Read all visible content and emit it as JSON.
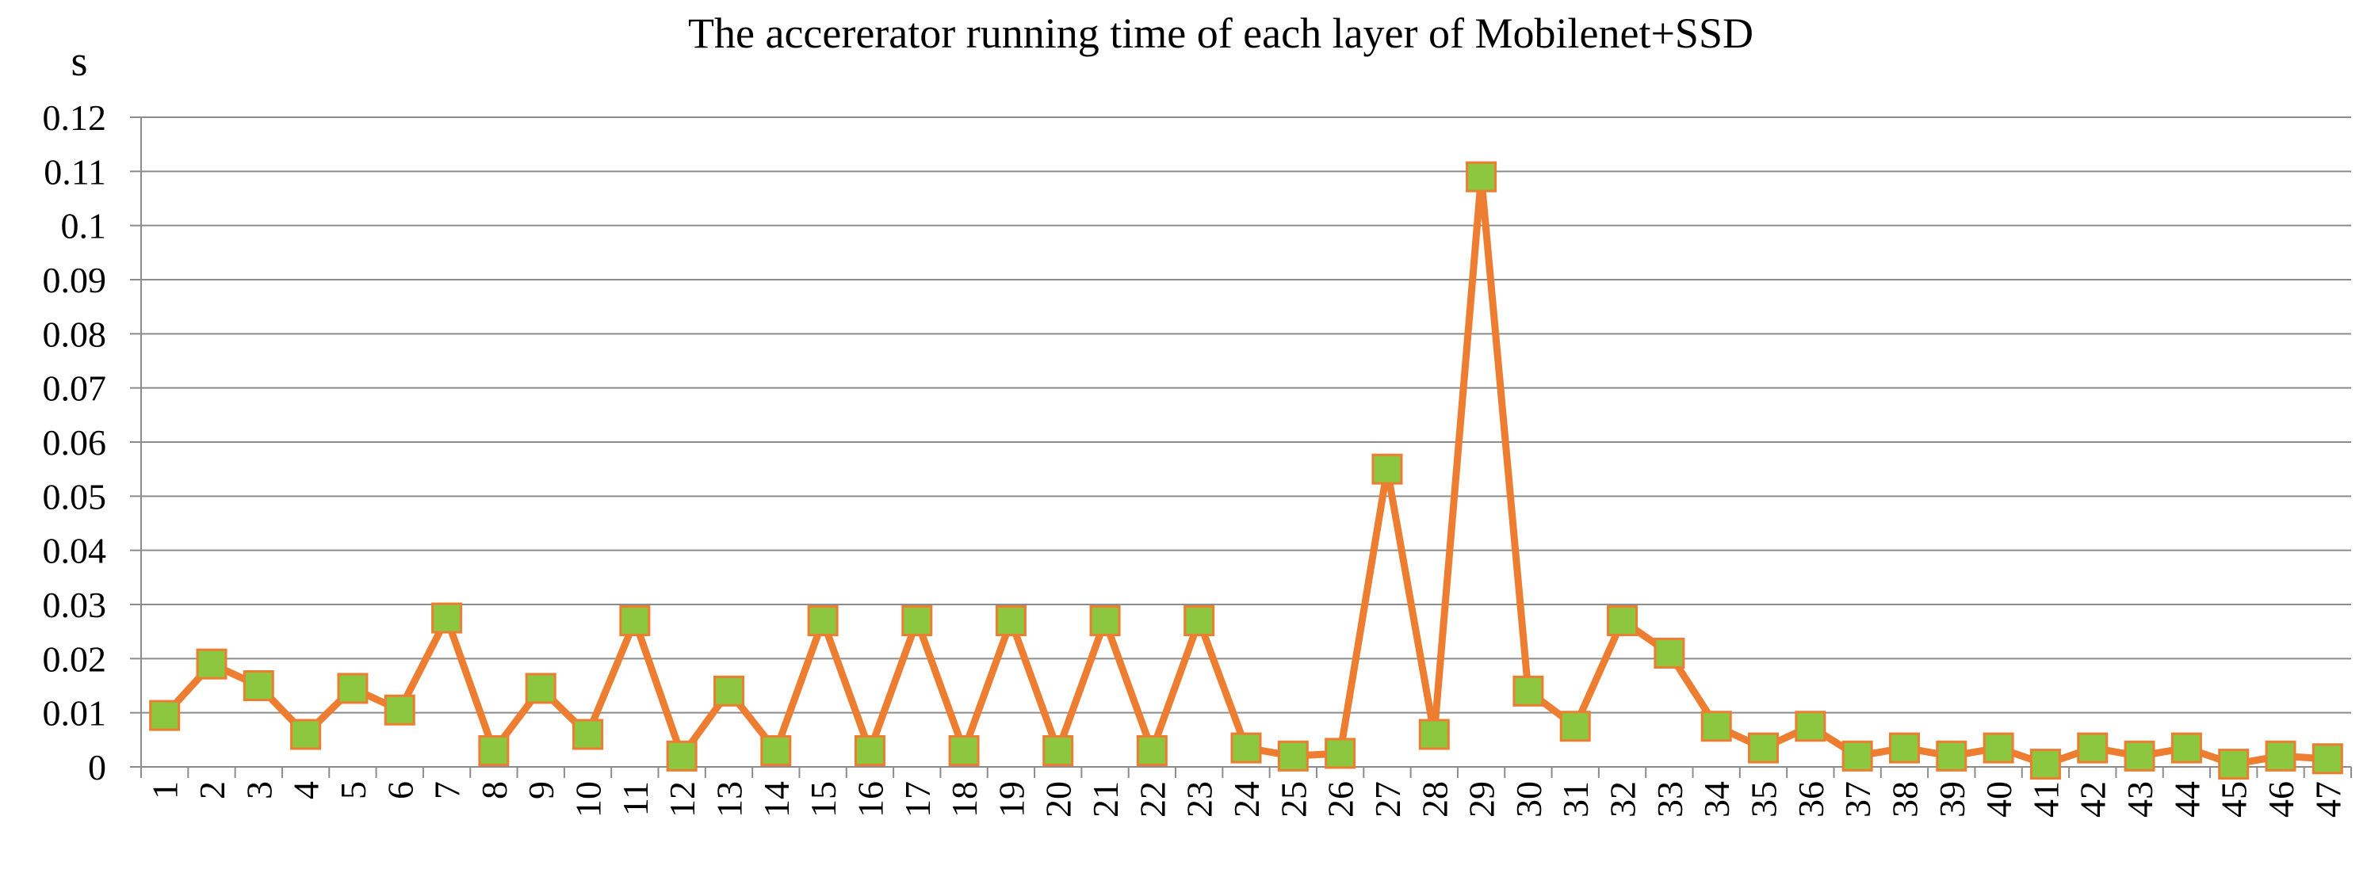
{
  "chart_data": {
    "type": "line",
    "title": "The accererator running  time  of each layer  of Mobilenet+SSD",
    "ylabel": "s",
    "xlabel": "",
    "ylim": [
      0,
      0.12
    ],
    "yticks": [
      "0",
      "0.01",
      "0.02",
      "0.03",
      "0.04",
      "0.05",
      "0.06",
      "0.07",
      "0.08",
      "0.09",
      "0.1",
      "0.11",
      "0.12"
    ],
    "categories": [
      "1",
      "2",
      "3",
      "4",
      "5",
      "6",
      "7",
      "8",
      "9",
      "10",
      "11",
      "12",
      "13",
      "14",
      "15",
      "16",
      "17",
      "18",
      "19",
      "20",
      "21",
      "22",
      "23",
      "24",
      "25",
      "26",
      "27",
      "28",
      "29",
      "30",
      "31",
      "32",
      "33",
      "34",
      "35",
      "36",
      "37",
      "38",
      "39",
      "40",
      "41",
      "42",
      "43",
      "44",
      "45",
      "46",
      "47"
    ],
    "series": [
      {
        "values": [
          0.0095,
          0.019,
          0.015,
          0.006,
          0.0145,
          0.0105,
          0.0275,
          0.003,
          0.0145,
          0.006,
          0.027,
          0.002,
          0.014,
          0.003,
          0.027,
          0.003,
          0.027,
          0.003,
          0.027,
          0.003,
          0.027,
          0.003,
          0.027,
          0.0035,
          0.002,
          0.0025,
          0.055,
          0.006,
          0.109,
          0.014,
          0.0075,
          0.027,
          0.021,
          0.0075,
          0.0035,
          0.0075,
          0.002,
          0.0035,
          0.002,
          0.0035,
          0.0005,
          0.0035,
          0.002,
          0.0035,
          0.0005,
          0.002,
          0.0015
        ]
      }
    ],
    "grid": true,
    "legend": "none",
    "colors": {
      "line": "#ED7D31",
      "marker_fill": "#8DC63F",
      "marker_edge": "#ED7D31",
      "gridline": "#8C8C8C",
      "axis": "#8C8C8C"
    }
  }
}
